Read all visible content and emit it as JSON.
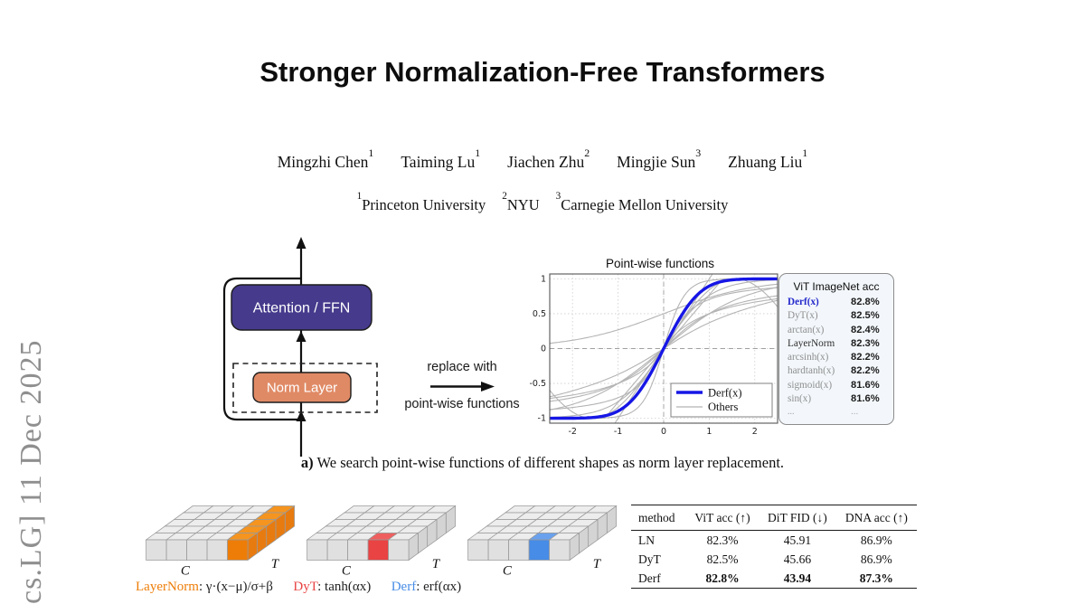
{
  "arxiv_sidebar": {
    "text": "cs.LG] 11 Dec 2025"
  },
  "header": {
    "title": "Stronger Normalization-Free Transformers",
    "authors": [
      {
        "name": "Mingzhi Chen",
        "sup": "1"
      },
      {
        "name": "Taiming Lu",
        "sup": "1"
      },
      {
        "name": "Jiachen Zhu",
        "sup": "2"
      },
      {
        "name": "Mingjie Sun",
        "sup": "3"
      },
      {
        "name": "Zhuang Liu",
        "sup": "1"
      }
    ],
    "affiliations": [
      {
        "sup": "1",
        "name": "Princeton University"
      },
      {
        "sup": "2",
        "name": "NYU"
      },
      {
        "sup": "3",
        "name": "Carnegie Mellon University"
      }
    ]
  },
  "block_diagram": {
    "attention_label": "Attention / FFN",
    "norm_label": "Norm Layer",
    "attention_color": "#453a8c",
    "norm_color": "#e08a65"
  },
  "replace_annotation": {
    "line1": "replace with",
    "line2": "point-wise functions"
  },
  "chart_data": {
    "type": "line",
    "title": "Point-wise functions",
    "x_range": [
      -2.5,
      2.5
    ],
    "y_range": [
      -1.07,
      1.07
    ],
    "x_ticks": [
      -2,
      -1,
      0,
      1,
      2
    ],
    "y_ticks": [
      -1,
      -0.5,
      0,
      0.5,
      1
    ],
    "grid": "dotted, dashed zero lines",
    "legend_position": "lower right",
    "main": {
      "label": "Derf(x)",
      "fn": "derf",
      "color": "#1616e6",
      "width": 3.4
    },
    "others_label": "Others",
    "others_color": "#b4b4b4",
    "others": [
      {
        "fn": "tanh1"
      },
      {
        "fn": "tanh2"
      },
      {
        "fn": "tanh05"
      },
      {
        "fn": "softsign"
      },
      {
        "fn": "atan1"
      },
      {
        "fn": "atan2"
      },
      {
        "fn": "sigmoid"
      },
      {
        "fn": "hardtanh"
      },
      {
        "fn": "identity"
      },
      {
        "fn": "sin"
      },
      {
        "fn": "asinh"
      }
    ]
  },
  "acc_panel": {
    "title": "ViT ImageNet acc",
    "rows": [
      {
        "name": "Derf(x)",
        "value": "82.8%",
        "highlight": true
      },
      {
        "name": "DyT(x)",
        "value": "82.5%"
      },
      {
        "name": "arctan(x)",
        "value": "82.4%"
      },
      {
        "name": "LayerNorm",
        "value": "82.3%",
        "dark": true
      },
      {
        "name": "arcsinh(x)",
        "value": "82.2%"
      },
      {
        "name": "hardtanh(x)",
        "value": "82.2%"
      },
      {
        "name": "sigmoid(x)",
        "value": "81.6%"
      },
      {
        "name": "sin(x)",
        "value": "81.6%"
      },
      {
        "name": "...",
        "value": "...",
        "ellipsis": true
      }
    ]
  },
  "caption_a": {
    "label": "a)",
    "text": " We search point-wise functions of different shapes as norm layer replacement."
  },
  "cube_style": {
    "top": "#ededed",
    "front": "#e0e0e0",
    "side": "#d4d4d4",
    "stroke": "#9a9a9a"
  },
  "cube_figures": [
    {
      "c_label": "C",
      "t_label": "T",
      "highlight": {
        "type": "column",
        "top": "#f5941f",
        "front": "#ee7d08",
        "side": "#e87b10"
      }
    },
    {
      "c_label": "C",
      "t_label": "T",
      "highlight": {
        "type": "cell",
        "top": "#ef5f5f",
        "front": "#e94343"
      }
    },
    {
      "c_label": "C",
      "t_label": "T",
      "highlight": {
        "type": "cell",
        "top": "#69a1ee",
        "front": "#478ce6"
      }
    }
  ],
  "formula_strip": {
    "segments": [
      {
        "text": "LayerNorm",
        "color": "#ee7d08"
      },
      {
        "text": ": γ·(x−μ)/σ+β      ",
        "color": "#222222"
      },
      {
        "text": "DyT",
        "color": "#e94343"
      },
      {
        "text": ": tanh(αx)      ",
        "color": "#222222"
      },
      {
        "text": "Derf",
        "color": "#478ce6"
      },
      {
        "text": ": erf(αx)",
        "color": "#222222"
      }
    ]
  },
  "results_table": {
    "headers": [
      "method",
      "ViT acc (↑)",
      "DiT FID (↓)",
      "DNA acc (↑)"
    ],
    "rows": [
      {
        "method": "LN",
        "vit": "82.3%",
        "dit": "45.91",
        "dna": "86.9%",
        "bold": false
      },
      {
        "method": "DyT",
        "vit": "82.5%",
        "dit": "45.66",
        "dna": "86.9%",
        "bold": false
      },
      {
        "method": "Derf",
        "vit": "82.8%",
        "dit": "43.94",
        "dna": "87.3%",
        "bold": true
      }
    ]
  }
}
